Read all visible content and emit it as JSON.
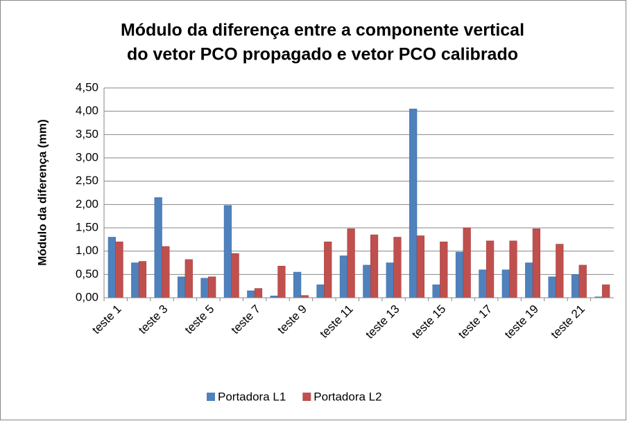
{
  "chart_data": {
    "type": "bar",
    "title": [
      "Módulo da diferença entre a componente vertical",
      "do vetor PCO propagado e vetor PCO calibrado"
    ],
    "ylabel": "Módulo da diferença (mm)",
    "categories": [
      "teste 1",
      null,
      "teste 3",
      null,
      "teste 5",
      null,
      "teste 7",
      null,
      "teste 9",
      null,
      "teste 11",
      null,
      "teste 13",
      null,
      "teste 15",
      null,
      "teste 17",
      null,
      "teste 19",
      null,
      "teste 21",
      null
    ],
    "series": [
      {
        "name": "Portadora L1",
        "color": "#4f81bd",
        "values": [
          1.3,
          0.75,
          2.15,
          0.45,
          0.42,
          1.98,
          0.15,
          0.04,
          0.55,
          0.28,
          0.9,
          0.7,
          0.75,
          4.05,
          0.28,
          0.98,
          0.6,
          0.6,
          0.75,
          0.45,
          0.5,
          0.02
        ]
      },
      {
        "name": "Portadora L2",
        "color": "#c0504d",
        "values": [
          1.2,
          0.78,
          1.1,
          0.82,
          0.45,
          0.95,
          0.2,
          0.68,
          0.05,
          1.2,
          1.48,
          1.35,
          1.3,
          1.33,
          1.2,
          1.5,
          1.22,
          1.22,
          1.48,
          1.15,
          0.7,
          0.28
        ]
      }
    ],
    "ylim": [
      0,
      4.5
    ],
    "yticks": [
      {
        "value": 0,
        "label": "0,00"
      },
      {
        "value": 0.5,
        "label": "0,50"
      },
      {
        "value": 1,
        "label": "1,00"
      },
      {
        "value": 1.5,
        "label": "1,50"
      },
      {
        "value": 2,
        "label": "2,00"
      },
      {
        "value": 2.5,
        "label": "2,50"
      },
      {
        "value": 3,
        "label": "3,00"
      },
      {
        "value": 3.5,
        "label": "3,50"
      },
      {
        "value": 4,
        "label": "4,00"
      },
      {
        "value": 4.5,
        "label": "4,50"
      }
    ],
    "grid": true,
    "legend": "bottom"
  }
}
